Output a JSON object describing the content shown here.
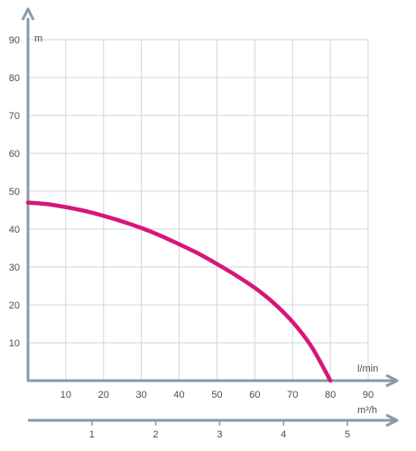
{
  "chart_data": {
    "type": "line",
    "ylabel": "m",
    "xlabel": "l/min",
    "x2label": "m³/h",
    "ylim": [
      0,
      90
    ],
    "xlim": [
      0,
      90
    ],
    "x2lim": [
      0,
      5
    ],
    "yticks": [
      10,
      20,
      30,
      40,
      50,
      60,
      70,
      80,
      90
    ],
    "xticks": [
      10,
      20,
      30,
      40,
      50,
      60,
      70,
      80,
      90
    ],
    "x2ticks": [
      1,
      2,
      3,
      4,
      5
    ],
    "grid": true,
    "series": [
      {
        "x": [
          0,
          5,
          10,
          15,
          20,
          25,
          30,
          35,
          40,
          45,
          50,
          55,
          60,
          65,
          70,
          75,
          80
        ],
        "y": [
          47,
          46.6,
          45.8,
          44.8,
          43.5,
          42,
          40.3,
          38.3,
          36,
          33.6,
          30.8,
          27.8,
          24.5,
          20.5,
          15.5,
          9,
          0
        ]
      }
    ],
    "colors": {
      "curve": "#d6177a",
      "axis": "#8a9aa6",
      "grid": "#cfd6dc",
      "text": "#4d4d4d"
    }
  }
}
